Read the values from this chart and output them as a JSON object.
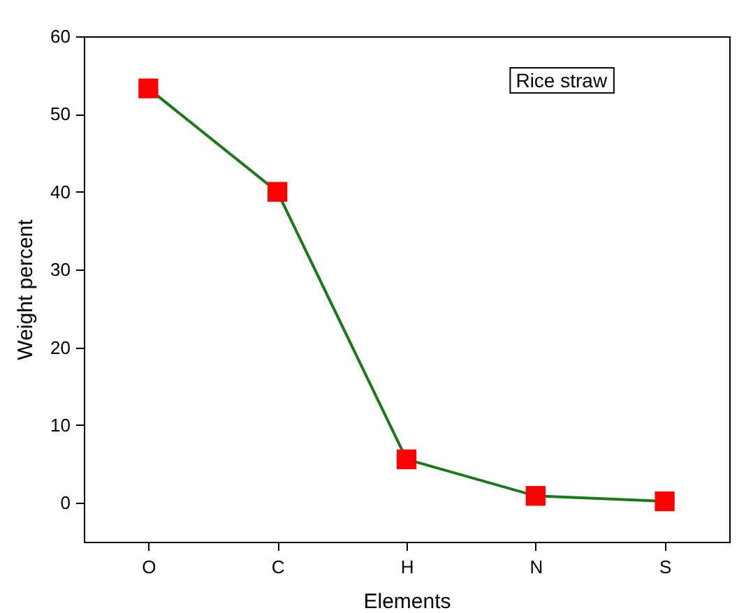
{
  "chart_data": {
    "type": "line",
    "xlabel": "Elements",
    "ylabel": "Weight percent",
    "categories": [
      "O",
      "C",
      "H",
      "N",
      "S"
    ],
    "series": [
      {
        "color": "#1a7a1a",
        "colors": [
          "#ff0000",
          "#ff0000",
          "#ff0000",
          "#ff0000",
          "#ff0000"
        ],
        "values": [
          53.3,
          40.0,
          5.6,
          0.9,
          0.2
        ]
      }
    ],
    "ylim": [
      -5,
      60
    ],
    "yticks": [
      0,
      10,
      20,
      30,
      40,
      50,
      60
    ],
    "grid": false,
    "marker": "square",
    "line_style": "solid",
    "annotations": [
      "Rice straw"
    ]
  }
}
